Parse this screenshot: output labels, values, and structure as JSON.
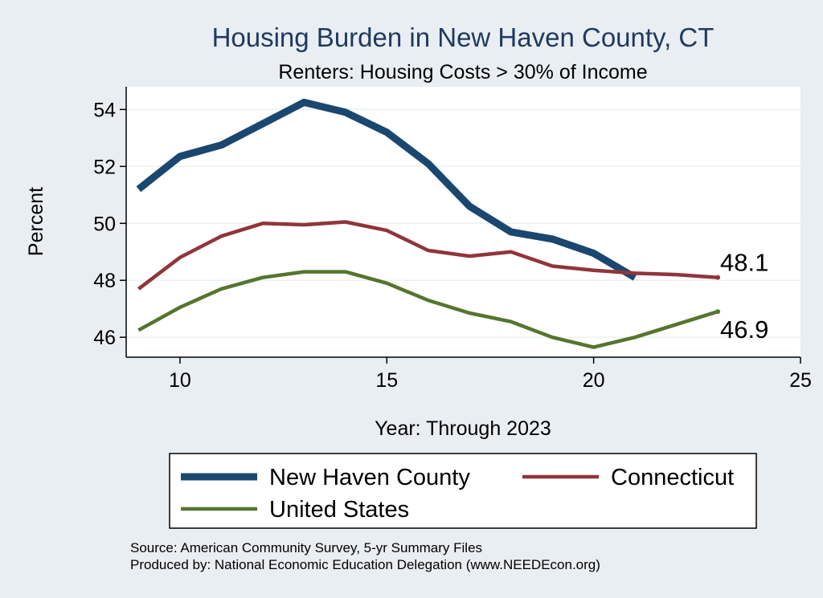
{
  "chart_data": {
    "type": "line",
    "title": "Housing Burden in New Haven County, CT",
    "subtitle": "Renters: Housing Costs > 30% of Income",
    "xlabel": "Year: Through 2023",
    "ylabel": "Percent",
    "xlim": [
      8.7,
      25
    ],
    "ylim": [
      45.3,
      54.8
    ],
    "xticks": [
      10,
      15,
      20,
      25
    ],
    "yticks": [
      46,
      48,
      50,
      52,
      54
    ],
    "grid": true,
    "legend_position": "bottom",
    "series": [
      {
        "name": "New Haven County",
        "color": "#1a476f",
        "width": 9,
        "x": [
          9,
          10,
          11,
          12,
          13,
          14,
          15,
          16,
          17,
          18,
          19,
          20,
          21
        ],
        "y": [
          51.2,
          52.35,
          52.75,
          53.5,
          54.25,
          53.9,
          53.2,
          52.1,
          50.6,
          49.7,
          49.45,
          48.95,
          48.1
        ]
      },
      {
        "name": "Connecticut",
        "color": "#90353b",
        "width": 4.5,
        "x": [
          9,
          10,
          11,
          12,
          13,
          14,
          15,
          16,
          17,
          18,
          19,
          20,
          21,
          22,
          23
        ],
        "y": [
          47.7,
          48.8,
          49.55,
          50.0,
          49.95,
          50.05,
          49.75,
          49.05,
          48.85,
          49.0,
          48.5,
          48.35,
          48.25,
          48.2,
          48.1
        ],
        "end_label": "48.1"
      },
      {
        "name": "United States",
        "color": "#55752f",
        "width": 4.5,
        "x": [
          9,
          10,
          11,
          12,
          13,
          14,
          15,
          16,
          17,
          18,
          19,
          20,
          21,
          22,
          23
        ],
        "y": [
          46.25,
          47.05,
          47.7,
          48.1,
          48.3,
          48.3,
          47.9,
          47.3,
          46.85,
          46.55,
          46.0,
          45.65,
          46.0,
          46.45,
          46.9
        ],
        "end_label": "46.9"
      }
    ]
  },
  "source": {
    "line1": "Source: American Community Survey, 5-yr Summary Files",
    "line2": "Produced by: National Economic Education Delegation (www.NEEDEcon.org)"
  }
}
